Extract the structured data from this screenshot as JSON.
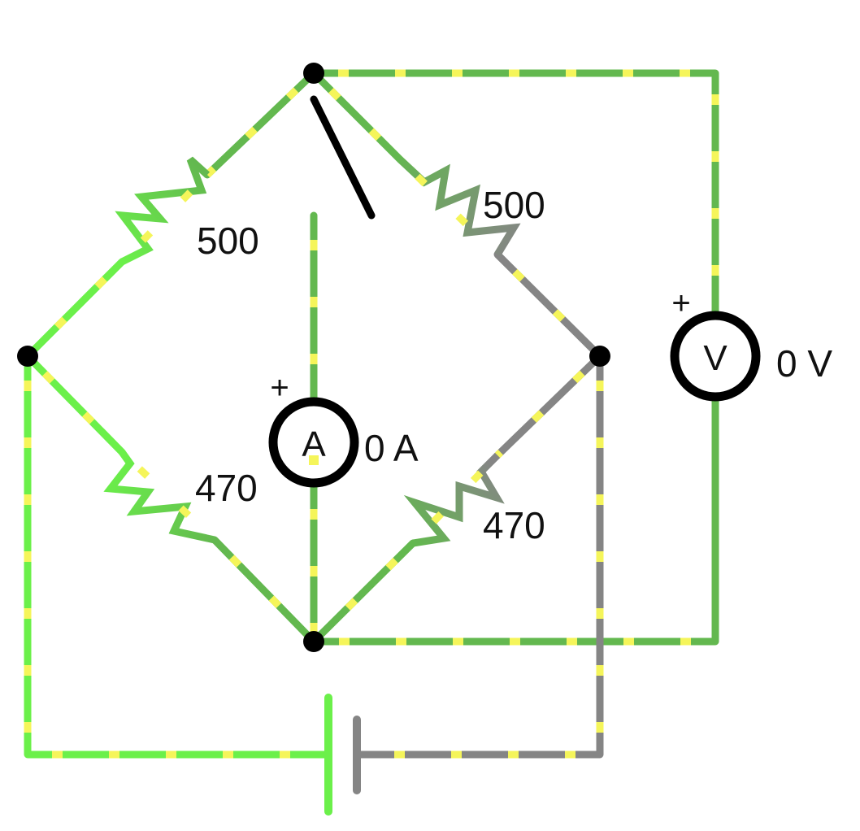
{
  "colors": {
    "wire_green": "#63b84f",
    "wire_bright_green": "#6bf04a",
    "wire_gray": "#858585",
    "electron_dot": "#f5f55a",
    "node": "#000000",
    "switch_arm": "#000000"
  },
  "resistors": {
    "top_left": {
      "label": "500"
    },
    "top_right": {
      "label": "500"
    },
    "bottom_left": {
      "label": "470"
    },
    "bottom_right": {
      "label": "470"
    }
  },
  "ammeter": {
    "symbol": "A",
    "polarity": "+",
    "reading": "0 A"
  },
  "voltmeter": {
    "symbol": "V",
    "polarity": "+",
    "reading": "0 V"
  },
  "switch": {
    "state": "open"
  },
  "battery": {
    "present": true
  }
}
